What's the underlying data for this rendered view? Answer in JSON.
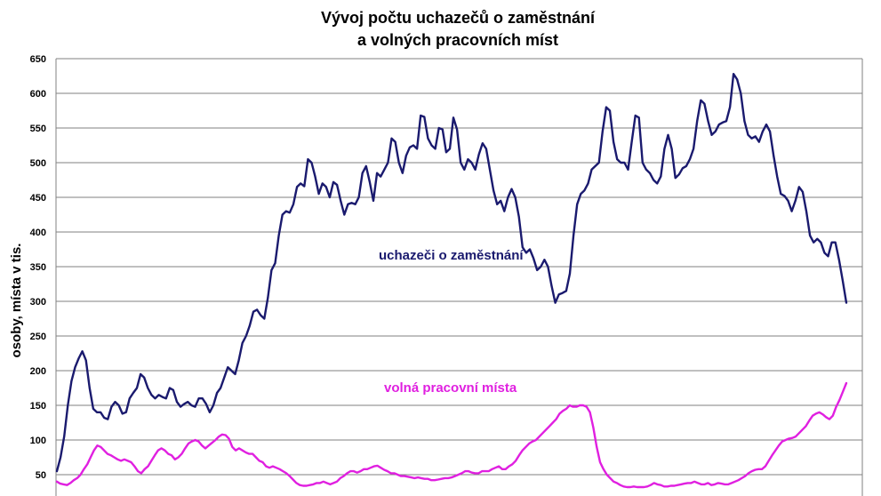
{
  "chart_data": {
    "type": "line",
    "title": "Vývoj počtu uchazečů o zaměstnání",
    "subtitle": "a volných pracovních míst",
    "xlabel": "",
    "ylabel": "osoby, místa v tis.",
    "ylim": [
      0,
      650
    ],
    "yticks": [
      "50",
      "100",
      "150",
      "200",
      "250",
      "300",
      "350",
      "400",
      "450",
      "500",
      "550",
      "600",
      "650"
    ],
    "grid": true,
    "series": [
      {
        "name": "uchazeči o zaměstnání",
        "color": "#1a1a6e",
        "values": [
          55,
          75,
          105,
          150,
          185,
          205,
          218,
          228,
          215,
          175,
          145,
          140,
          140,
          132,
          130,
          148,
          155,
          150,
          138,
          140,
          160,
          168,
          175,
          195,
          190,
          175,
          165,
          160,
          165,
          162,
          160,
          175,
          172,
          155,
          148,
          152,
          155,
          150,
          148,
          160,
          160,
          152,
          140,
          150,
          168,
          175,
          190,
          205,
          200,
          195,
          215,
          240,
          250,
          265,
          285,
          288,
          280,
          275,
          305,
          345,
          355,
          395,
          425,
          430,
          428,
          440,
          465,
          470,
          466,
          505,
          500,
          480,
          455,
          470,
          465,
          450,
          472,
          468,
          445,
          425,
          440,
          442,
          440,
          450,
          485,
          495,
          472,
          445,
          485,
          480,
          490,
          500,
          535,
          530,
          500,
          485,
          510,
          522,
          525,
          520,
          568,
          566,
          535,
          525,
          520,
          550,
          548,
          515,
          520,
          565,
          548,
          500,
          490,
          505,
          500,
          490,
          512,
          528,
          520,
          490,
          460,
          440,
          445,
          430,
          450,
          462,
          450,
          422,
          378,
          370,
          375,
          362,
          345,
          350,
          360,
          350,
          322,
          298,
          310,
          312,
          315,
          340,
          395,
          440,
          455,
          460,
          470,
          490,
          495,
          500,
          545,
          580,
          575,
          530,
          505,
          500,
          500,
          490,
          530,
          568,
          565,
          500,
          490,
          485,
          475,
          470,
          480,
          520,
          540,
          520,
          478,
          483,
          492,
          495,
          505,
          520,
          560,
          590,
          585,
          560,
          540,
          545,
          555,
          558,
          560,
          580,
          628,
          620,
          600,
          560,
          540,
          535,
          538,
          530,
          545,
          555,
          545,
          510,
          480,
          455,
          452,
          445,
          430,
          445,
          465,
          458,
          430,
          395,
          385,
          390,
          385,
          370,
          365,
          385,
          385,
          360,
          330,
          298
        ]
      },
      {
        "name": "volná pracovní místa",
        "color": "#e020e0",
        "values": [
          40,
          37,
          36,
          35,
          38,
          42,
          45,
          50,
          58,
          65,
          75,
          85,
          92,
          90,
          85,
          80,
          78,
          75,
          72,
          70,
          72,
          70,
          68,
          62,
          55,
          52,
          58,
          62,
          70,
          78,
          85,
          88,
          85,
          80,
          78,
          72,
          75,
          80,
          88,
          95,
          98,
          100,
          98,
          92,
          88,
          92,
          96,
          100,
          105,
          108,
          107,
          102,
          90,
          85,
          88,
          85,
          82,
          80,
          80,
          75,
          70,
          68,
          62,
          60,
          62,
          60,
          58,
          55,
          52,
          48,
          43,
          38,
          35,
          34,
          34,
          35,
          36,
          38,
          38,
          40,
          38,
          36,
          38,
          40,
          45,
          48,
          52,
          55,
          55,
          53,
          55,
          58,
          58,
          60,
          62,
          63,
          60,
          57,
          55,
          52,
          52,
          50,
          48,
          48,
          47,
          46,
          45,
          46,
          45,
          44,
          44,
          42,
          42,
          43,
          44,
          45,
          45,
          46,
          48,
          50,
          52,
          55,
          55,
          53,
          52,
          52,
          55,
          55,
          55,
          58,
          60,
          62,
          58,
          58,
          62,
          65,
          70,
          78,
          85,
          90,
          95,
          98,
          100,
          105,
          110,
          115,
          120,
          125,
          130,
          138,
          142,
          145,
          150,
          148,
          148,
          150,
          150,
          148,
          140,
          118,
          90,
          68,
          58,
          50,
          45,
          40,
          38,
          35,
          33,
          32,
          32,
          33,
          32,
          32,
          32,
          33,
          35,
          38,
          36,
          35,
          33,
          33,
          34,
          34,
          35,
          36,
          37,
          38,
          38,
          40,
          38,
          36,
          36,
          38,
          35,
          36,
          38,
          37,
          36,
          36,
          38,
          40,
          42,
          45,
          48,
          52,
          55,
          57,
          58,
          58,
          62,
          70,
          78,
          85,
          92,
          98,
          100,
          102,
          103,
          105,
          110,
          115,
          120,
          128,
          135,
          138,
          140,
          137,
          133,
          130,
          135,
          148,
          158,
          170,
          182
        ]
      }
    ],
    "annotations": [
      {
        "text": "uchazeči o zaměstnání",
        "series": 0
      },
      {
        "text": "volná pracovní místa",
        "series": 1
      }
    ]
  }
}
